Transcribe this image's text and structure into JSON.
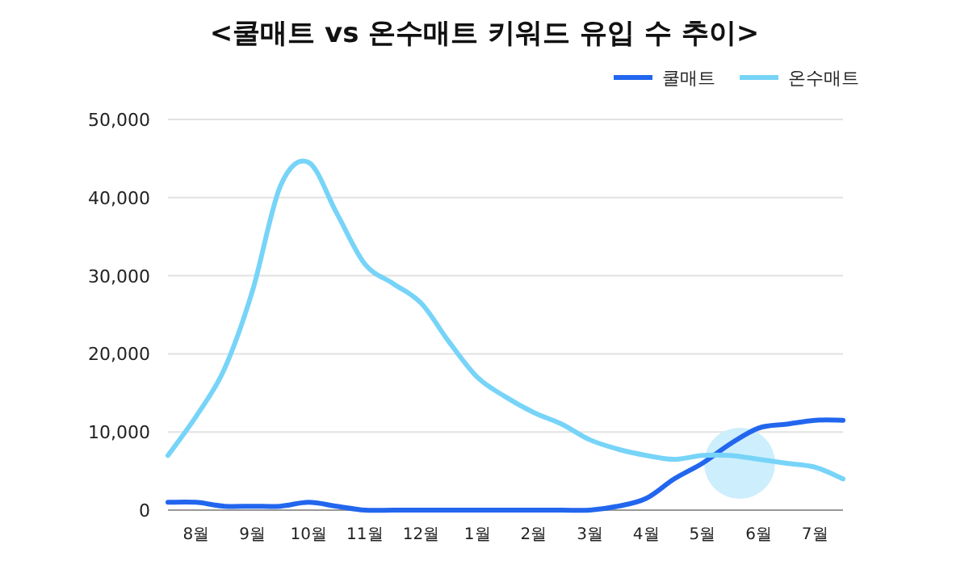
{
  "chart_data": {
    "type": "line",
    "title": "<쿨매트 vs 온수매트 키워드 유입 수 추이>",
    "categories": [
      null,
      "8월",
      null,
      "9월",
      null,
      "10월",
      null,
      "11월",
      null,
      "12월",
      null,
      "1월",
      null,
      "2월",
      null,
      "3월",
      null,
      "4월",
      null,
      "5월",
      null,
      "6월",
      null,
      "7월",
      null
    ],
    "ylim": [
      0,
      50000
    ],
    "yticks": [
      {
        "value": 0,
        "label": "0"
      },
      {
        "value": 10000,
        "label": "10,000"
      },
      {
        "value": 20000,
        "label": "20,000"
      },
      {
        "value": 30000,
        "label": "30,000"
      },
      {
        "value": 40000,
        "label": "40,000"
      },
      {
        "value": 50000,
        "label": "50,000"
      }
    ],
    "grid": "y",
    "legend": "top right",
    "line_style": "solid",
    "marker": "none",
    "series": [
      {
        "name": "쿨매트",
        "color": "#2266ee",
        "values": [
          1000,
          1000,
          500,
          500,
          500,
          1000,
          500,
          0,
          0,
          0,
          0,
          0,
          0,
          0,
          0,
          0,
          500,
          1500,
          4000,
          6000,
          8500,
          10500,
          11000,
          11500,
          11500
        ]
      },
      {
        "name": "온수매트",
        "color": "#77d4f8",
        "values": [
          7000,
          12000,
          18000,
          28000,
          41500,
          44500,
          38000,
          31500,
          29000,
          26500,
          21500,
          17000,
          14500,
          12500,
          11000,
          9000,
          7800,
          7000,
          6500,
          7000,
          7000,
          6500,
          6000,
          5500,
          4000
        ]
      }
    ]
  }
}
